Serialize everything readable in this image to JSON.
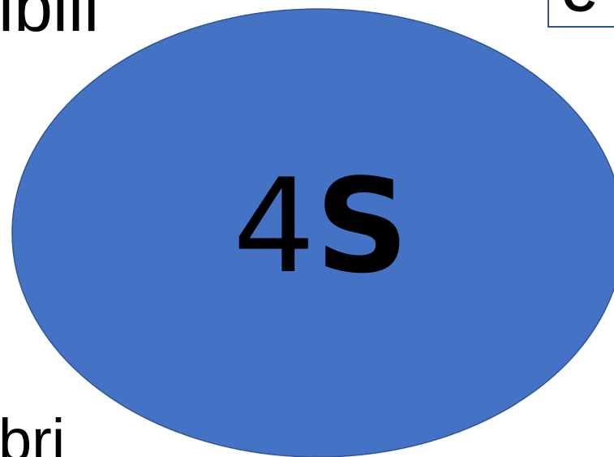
{
  "fragments": {
    "top_left": "ibili",
    "bottom_left": "bri",
    "top_right_box": "C"
  },
  "ellipse": {
    "label_number": "4",
    "label_letter": "S",
    "fill": "#4472c4",
    "stroke": "#2f5597"
  }
}
